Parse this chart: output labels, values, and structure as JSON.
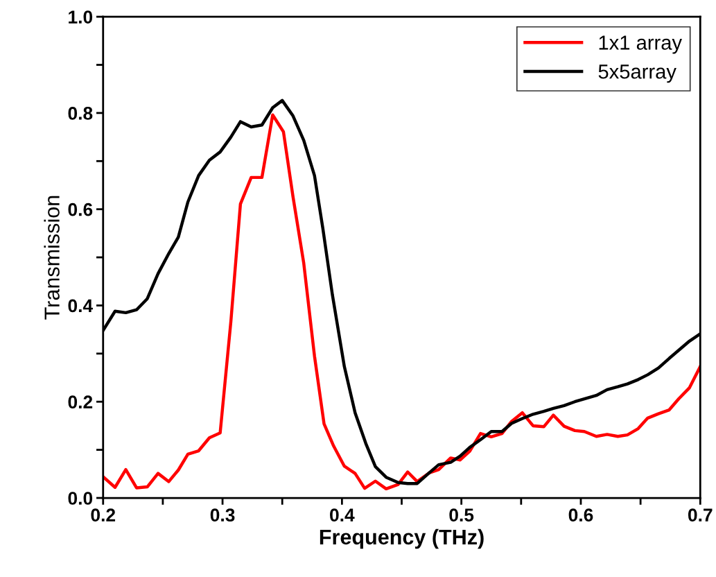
{
  "chart_data": {
    "type": "line",
    "xlabel": "Frequency (THz)",
    "ylabel": "Transmission",
    "xlim": [
      0.2,
      0.7
    ],
    "ylim": [
      0.0,
      1.0
    ],
    "xticks": [
      {
        "value": 0.2,
        "label": "0.2"
      },
      {
        "value": 0.25,
        "label": null
      },
      {
        "value": 0.3,
        "label": "0.3"
      },
      {
        "value": 0.35,
        "label": null
      },
      {
        "value": 0.4,
        "label": "0.4"
      },
      {
        "value": 0.45,
        "label": null
      },
      {
        "value": 0.5,
        "label": "0.5"
      },
      {
        "value": 0.55,
        "label": null
      },
      {
        "value": 0.6,
        "label": "0.6"
      },
      {
        "value": 0.65,
        "label": null
      },
      {
        "value": 0.7,
        "label": "0.7"
      }
    ],
    "yticks": [
      {
        "value": 0.0,
        "label": "0.0"
      },
      {
        "value": 0.1,
        "label": null
      },
      {
        "value": 0.2,
        "label": "0.2"
      },
      {
        "value": 0.3,
        "label": null
      },
      {
        "value": 0.4,
        "label": "0.4"
      },
      {
        "value": 0.5,
        "label": null
      },
      {
        "value": 0.6,
        "label": "0.6"
      },
      {
        "value": 0.7,
        "label": null
      },
      {
        "value": 0.8,
        "label": "0.8"
      },
      {
        "value": 0.9,
        "label": null
      },
      {
        "value": 1.0,
        "label": "1.0"
      }
    ],
    "grid": false,
    "legend": "top right",
    "marker": "none",
    "line_style": "solid",
    "series": [
      {
        "name": "1x1 array",
        "color": "#ff0000",
        "x": [
          0.2,
          0.21,
          0.219,
          0.228,
          0.237,
          0.246,
          0.255,
          0.263,
          0.271,
          0.28,
          0.289,
          0.298,
          0.307,
          0.315,
          0.324,
          0.333,
          0.342,
          0.351,
          0.359,
          0.368,
          0.377,
          0.385,
          0.393,
          0.402,
          0.411,
          0.419,
          0.428,
          0.437,
          0.447,
          0.455,
          0.463,
          0.473,
          0.481,
          0.491,
          0.499,
          0.507,
          0.516,
          0.525,
          0.534,
          0.542,
          0.551,
          0.56,
          0.569,
          0.577,
          0.586,
          0.595,
          0.603,
          0.613,
          0.622,
          0.631,
          0.639,
          0.648,
          0.656,
          0.665,
          0.674,
          0.682,
          0.691,
          0.7
        ],
        "values": [
          0.044,
          0.022,
          0.059,
          0.021,
          0.023,
          0.051,
          0.034,
          0.058,
          0.091,
          0.098,
          0.125,
          0.135,
          0.367,
          0.611,
          0.666,
          0.666,
          0.796,
          0.761,
          0.626,
          0.488,
          0.295,
          0.154,
          0.108,
          0.066,
          0.051,
          0.02,
          0.035,
          0.019,
          0.028,
          0.054,
          0.034,
          0.052,
          0.059,
          0.083,
          0.079,
          0.097,
          0.134,
          0.127,
          0.134,
          0.159,
          0.177,
          0.15,
          0.148,
          0.172,
          0.149,
          0.14,
          0.138,
          0.128,
          0.132,
          0.128,
          0.131,
          0.144,
          0.166,
          0.175,
          0.183,
          0.206,
          0.229,
          0.273
        ]
      },
      {
        "name": "5x5array",
        "color": "#000000",
        "x": [
          0.2,
          0.21,
          0.219,
          0.228,
          0.237,
          0.246,
          0.255,
          0.263,
          0.271,
          0.28,
          0.289,
          0.298,
          0.307,
          0.315,
          0.324,
          0.333,
          0.342,
          0.35,
          0.359,
          0.368,
          0.377,
          0.384,
          0.392,
          0.402,
          0.411,
          0.42,
          0.428,
          0.437,
          0.447,
          0.455,
          0.463,
          0.473,
          0.481,
          0.491,
          0.499,
          0.507,
          0.516,
          0.525,
          0.534,
          0.542,
          0.551,
          0.56,
          0.569,
          0.577,
          0.586,
          0.595,
          0.603,
          0.613,
          0.622,
          0.631,
          0.639,
          0.648,
          0.656,
          0.665,
          0.674,
          0.682,
          0.691,
          0.7
        ],
        "values": [
          0.348,
          0.388,
          0.385,
          0.391,
          0.414,
          0.466,
          0.508,
          0.542,
          0.615,
          0.67,
          0.702,
          0.719,
          0.75,
          0.782,
          0.771,
          0.775,
          0.811,
          0.826,
          0.794,
          0.743,
          0.67,
          0.56,
          0.422,
          0.273,
          0.177,
          0.113,
          0.065,
          0.043,
          0.032,
          0.03,
          0.03,
          0.052,
          0.069,
          0.074,
          0.087,
          0.105,
          0.121,
          0.138,
          0.138,
          0.155,
          0.165,
          0.174,
          0.18,
          0.186,
          0.192,
          0.2,
          0.206,
          0.213,
          0.225,
          0.231,
          0.237,
          0.246,
          0.256,
          0.27,
          0.29,
          0.307,
          0.326,
          0.341
        ]
      }
    ]
  }
}
